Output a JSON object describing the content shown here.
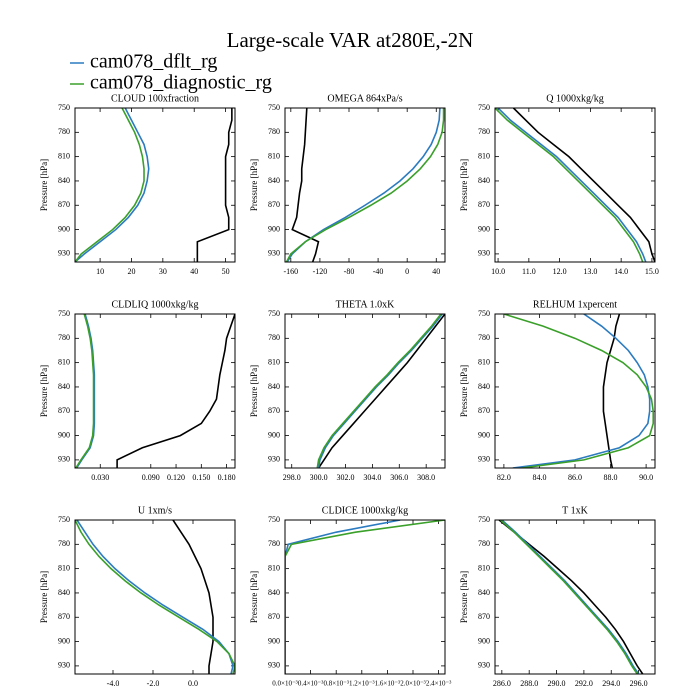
{
  "title": "Large-scale VAR at280E,-2N",
  "legend": [
    {
      "name": "cam078_dflt_rg",
      "color": "#2b7bc0"
    },
    {
      "name": "cam078_diagnostic_rg",
      "color": "#3aa02a"
    }
  ],
  "chart_data": [
    {
      "type": "profile",
      "title": "CLOUD  100xfraction",
      "ylabel": "Pressure [hPa]",
      "y": [
        750,
        765,
        780,
        795,
        810,
        825,
        840,
        855,
        870,
        885,
        900,
        915,
        930,
        940
      ],
      "ylim": [
        750,
        940
      ],
      "yticks": [
        750,
        780,
        810,
        840,
        870,
        900,
        930
      ],
      "xlim": [
        2,
        53
      ],
      "xticks": [
        10,
        20,
        30,
        40,
        50
      ],
      "series": [
        {
          "color": "#000000",
          "values": [
            52,
            52,
            51,
            51,
            50,
            50,
            50,
            50,
            50,
            51,
            51,
            41,
            41,
            41
          ]
        },
        {
          "color": "#2b7bc0",
          "values": [
            18,
            20,
            22,
            24,
            25,
            25.5,
            25,
            24,
            22,
            19,
            15,
            10,
            5,
            2
          ]
        },
        {
          "color": "#3aa02a",
          "values": [
            17,
            19,
            21,
            22.5,
            23.5,
            24,
            24,
            23,
            21,
            18,
            14,
            9,
            4,
            2
          ]
        }
      ]
    },
    {
      "type": "profile",
      "title": "OMEGA  864xPa/s",
      "ylabel": "Pressure [hPa]",
      "y": [
        750,
        765,
        780,
        795,
        810,
        825,
        840,
        855,
        870,
        885,
        900,
        915,
        930,
        940
      ],
      "ylim": [
        750,
        940
      ],
      "yticks": [
        750,
        780,
        810,
        840,
        870,
        900,
        930
      ],
      "xlim": [
        -168,
        52
      ],
      "xticks": [
        -160,
        -120,
        -80,
        -40,
        0,
        40
      ],
      "series": [
        {
          "color": "#000000",
          "values": [
            -138,
            -139,
            -140,
            -141,
            -143,
            -145,
            -145,
            -148,
            -150,
            -152,
            -158,
            -122,
            -126,
            -130
          ]
        },
        {
          "color": "#2b7bc0",
          "values": [
            45,
            44,
            40,
            33,
            22,
            8,
            -10,
            -32,
            -58,
            -85,
            -115,
            -140,
            -158,
            -165
          ]
        },
        {
          "color": "#3aa02a",
          "values": [
            50,
            50,
            48,
            42,
            32,
            18,
            0,
            -22,
            -50,
            -80,
            -112,
            -140,
            -160,
            -166
          ]
        }
      ]
    },
    {
      "type": "profile",
      "title": "Q  1000xkg/kg",
      "ylabel": "Pressure [hPa]",
      "y": [
        750,
        765,
        780,
        795,
        810,
        825,
        840,
        855,
        870,
        885,
        900,
        915,
        930,
        940
      ],
      "ylim": [
        750,
        940
      ],
      "yticks": [
        750,
        780,
        810,
        840,
        870,
        900,
        930
      ],
      "xlim": [
        9.9,
        15.1
      ],
      "xticks": [
        {
          "value": 10,
          "label": "10.0"
        },
        {
          "value": 11,
          "label": "11.0"
        },
        {
          "value": 12,
          "label": "12.0"
        },
        {
          "value": 13,
          "label": "13.0"
        },
        {
          "value": 14,
          "label": "14.0"
        },
        {
          "value": 15,
          "label": "15.0"
        }
      ],
      "series": [
        {
          "color": "#000000",
          "values": [
            10.5,
            10.9,
            11.3,
            11.8,
            12.3,
            12.7,
            13.1,
            13.5,
            13.9,
            14.3,
            14.6,
            14.9,
            15.0,
            15.1
          ]
        },
        {
          "color": "#2b7bc0",
          "values": [
            10.0,
            10.4,
            10.9,
            11.4,
            11.9,
            12.3,
            12.7,
            13.1,
            13.5,
            13.9,
            14.2,
            14.5,
            14.7,
            14.8
          ]
        },
        {
          "color": "#3aa02a",
          "values": [
            9.9,
            10.3,
            10.8,
            11.3,
            11.8,
            12.2,
            12.6,
            13.0,
            13.4,
            13.8,
            14.1,
            14.4,
            14.6,
            14.7
          ]
        }
      ]
    },
    {
      "type": "profile",
      "title": "CLDLIQ  1000xkg/kg",
      "ylabel": "Pressure [hPa]",
      "y": [
        750,
        765,
        780,
        795,
        810,
        825,
        840,
        855,
        870,
        885,
        900,
        915,
        930,
        940
      ],
      "ylim": [
        750,
        940
      ],
      "yticks": [
        750,
        780,
        810,
        840,
        870,
        900,
        930
      ],
      "xlim": [
        0,
        0.19
      ],
      "xticks": [
        {
          "value": 0.03,
          "label": "0.030"
        },
        {
          "value": 0.09,
          "label": "0.090"
        },
        {
          "value": 0.12,
          "label": "0.120"
        },
        {
          "value": 0.15,
          "label": "0.150"
        },
        {
          "value": 0.18,
          "label": "0.180"
        }
      ],
      "series": [
        {
          "color": "#000000",
          "values": [
            0.19,
            0.185,
            0.18,
            0.178,
            0.175,
            0.172,
            0.17,
            0.168,
            0.16,
            0.15,
            0.125,
            0.08,
            0.05,
            0.05
          ]
        },
        {
          "color": "#2b7bc0",
          "values": [
            0.012,
            0.016,
            0.019,
            0.021,
            0.022,
            0.023,
            0.023,
            0.023,
            0.023,
            0.023,
            0.022,
            0.018,
            0.008,
            0.002
          ]
        },
        {
          "color": "#3aa02a",
          "values": [
            0.011,
            0.015,
            0.018,
            0.02,
            0.021,
            0.022,
            0.022,
            0.022,
            0.022,
            0.022,
            0.021,
            0.017,
            0.007,
            0.001
          ]
        }
      ]
    },
    {
      "type": "profile",
      "title": "THETA  1.0xK",
      "ylabel": "Pressure [hPa]",
      "y": [
        750,
        765,
        780,
        795,
        810,
        825,
        840,
        855,
        870,
        885,
        900,
        915,
        930,
        940
      ],
      "ylim": [
        750,
        940
      ],
      "yticks": [
        750,
        780,
        810,
        840,
        870,
        900,
        930
      ],
      "xlim": [
        297.5,
        309.4
      ],
      "xticks": [
        {
          "value": 298,
          "label": "298.0"
        },
        {
          "value": 300,
          "label": "300.0"
        },
        {
          "value": 302,
          "label": "302.0"
        },
        {
          "value": 304,
          "label": "304.0"
        },
        {
          "value": 306,
          "label": "306.0"
        },
        {
          "value": 308,
          "label": "308.0"
        }
      ],
      "series": [
        {
          "color": "#000000",
          "values": [
            309.4,
            308.7,
            308.0,
            307.3,
            306.6,
            305.8,
            305.0,
            304.2,
            303.4,
            302.6,
            301.8,
            301.0,
            300.4,
            300.0
          ]
        },
        {
          "color": "#2b7bc0",
          "values": [
            309.2,
            308.5,
            307.7,
            306.9,
            306.0,
            305.2,
            304.3,
            303.5,
            302.7,
            301.9,
            301.1,
            300.5,
            300.1,
            300.0
          ]
        },
        {
          "color": "#3aa02a",
          "values": [
            309.1,
            308.4,
            307.6,
            306.8,
            305.9,
            305.1,
            304.2,
            303.4,
            302.6,
            301.8,
            301.0,
            300.4,
            300.0,
            299.9
          ]
        }
      ]
    },
    {
      "type": "profile",
      "title": "RELHUM  1xpercent",
      "ylabel": "Pressure [hPa]",
      "y": [
        750,
        765,
        780,
        795,
        810,
        825,
        840,
        855,
        870,
        885,
        900,
        915,
        930,
        940
      ],
      "ylim": [
        750,
        940
      ],
      "yticks": [
        750,
        780,
        810,
        840,
        870,
        900,
        930
      ],
      "xlim": [
        81.5,
        90.5
      ],
      "xticks": [
        {
          "value": 82,
          "label": "82.0"
        },
        {
          "value": 84,
          "label": "84.0"
        },
        {
          "value": 86,
          "label": "86.0"
        },
        {
          "value": 88,
          "label": "88.0"
        },
        {
          "value": 90,
          "label": "90.0"
        }
      ],
      "series": [
        {
          "color": "#000000",
          "values": [
            88.5,
            88.3,
            88.2,
            88.0,
            87.8,
            87.7,
            87.6,
            87.6,
            87.6,
            87.7,
            87.8,
            87.9,
            88.0,
            88.1
          ]
        },
        {
          "color": "#2b7bc0",
          "values": [
            86.5,
            87.5,
            88.3,
            89,
            89.5,
            89.9,
            90.1,
            90.2,
            90.2,
            90.1,
            89.6,
            88.5,
            86,
            82.5
          ]
        },
        {
          "color": "#3aa02a",
          "values": [
            82,
            84.2,
            86,
            87.5,
            88.7,
            89.5,
            90.0,
            90.3,
            90.4,
            90.4,
            90.2,
            89,
            86.5,
            83
          ]
        }
      ]
    },
    {
      "type": "profile",
      "title": "U  1xm/s",
      "ylabel": "Pressure [hPa]",
      "y": [
        750,
        765,
        780,
        795,
        810,
        825,
        840,
        855,
        870,
        885,
        900,
        915,
        930,
        940
      ],
      "ylim": [
        750,
        940
      ],
      "yticks": [
        750,
        780,
        810,
        840,
        870,
        900,
        930
      ],
      "xlim": [
        -5.9,
        2.1
      ],
      "xticks": [
        {
          "value": -4,
          "label": "-4.0"
        },
        {
          "value": -2,
          "label": "-2.0"
        },
        {
          "value": 0,
          "label": "0.0"
        }
      ],
      "series": [
        {
          "color": "#000000",
          "values": [
            -1.0,
            -0.6,
            -0.2,
            0.1,
            0.4,
            0.6,
            0.8,
            0.9,
            1.0,
            1.0,
            1.0,
            0.9,
            0.8,
            0.8
          ]
        },
        {
          "color": "#2b7bc0",
          "values": [
            -5.8,
            -5.4,
            -5.0,
            -4.5,
            -3.9,
            -3.2,
            -2.4,
            -1.5,
            -0.5,
            0.5,
            1.3,
            1.8,
            2.0,
            1.9
          ]
        },
        {
          "color": "#3aa02a",
          "values": [
            -5.9,
            -5.6,
            -5.2,
            -4.7,
            -4.1,
            -3.4,
            -2.6,
            -1.7,
            -0.7,
            0.3,
            1.2,
            1.8,
            2.1,
            2.0
          ]
        }
      ]
    },
    {
      "type": "profile",
      "title": "CLDICE  1000xkg/kg",
      "ylabel": "Pressure [hPa]",
      "y": [
        750,
        765,
        780,
        795,
        810,
        825,
        840,
        855,
        870,
        885,
        900,
        915,
        930,
        940
      ],
      "ylim": [
        750,
        940
      ],
      "yticks": [
        750,
        780,
        810,
        840,
        870,
        900,
        930
      ],
      "xlim": [
        0,
        0.0025
      ],
      "xticks": [
        {
          "value": 0,
          "label": "0.0×10⁻³"
        },
        {
          "value": 0.0004,
          "label": "0.4×10⁻³"
        },
        {
          "value": 0.0008,
          "label": "0.8×10⁻³"
        },
        {
          "value": 0.0012,
          "label": "1.2×10⁻³"
        },
        {
          "value": 0.0016,
          "label": "1.6×10⁻³"
        },
        {
          "value": 0.002,
          "label": "2.0×10⁻³"
        },
        {
          "value": 0.0024,
          "label": "2.4×10⁻³"
        }
      ],
      "series": [
        {
          "color": "#2b7bc0",
          "values": [
            0.0018,
            0.0008,
            5e-05,
            0,
            0,
            0,
            0,
            0,
            0,
            0,
            0,
            0,
            0,
            0
          ]
        },
        {
          "color": "#3aa02a",
          "values": [
            0.0025,
            0.0011,
            0.0001,
            0,
            0,
            0,
            0,
            0,
            0,
            0,
            0,
            0,
            0,
            0
          ]
        }
      ]
    },
    {
      "type": "profile",
      "title": "T  1xK",
      "ylabel": "Pressure [hPa]",
      "y": [
        750,
        765,
        780,
        795,
        810,
        825,
        840,
        855,
        870,
        885,
        900,
        915,
        930,
        940
      ],
      "ylim": [
        750,
        940
      ],
      "yticks": [
        750,
        780,
        810,
        840,
        870,
        900,
        930
      ],
      "xlim": [
        285.5,
        297.2
      ],
      "xticks": [
        {
          "value": 286,
          "label": "286.0"
        },
        {
          "value": 288,
          "label": "288.0"
        },
        {
          "value": 290,
          "label": "290.0"
        },
        {
          "value": 292,
          "label": "292.0"
        },
        {
          "value": 294,
          "label": "294.0"
        },
        {
          "value": 296,
          "label": "296.0"
        }
      ],
      "series": [
        {
          "color": "#000000",
          "values": [
            285.8,
            286.9,
            288.0,
            289.1,
            290.1,
            291.1,
            292.0,
            292.8,
            293.6,
            294.3,
            294.9,
            295.4,
            295.9,
            296.3
          ]
        },
        {
          "color": "#2b7bc0",
          "values": [
            286.0,
            287.0,
            287.9,
            288.8,
            289.7,
            290.6,
            291.4,
            292.2,
            293.0,
            293.8,
            294.5,
            295.1,
            295.6,
            296.0
          ]
        },
        {
          "color": "#3aa02a",
          "values": [
            285.9,
            286.9,
            287.8,
            288.7,
            289.6,
            290.5,
            291.3,
            292.1,
            292.9,
            293.7,
            294.4,
            295.0,
            295.5,
            295.9
          ]
        }
      ]
    }
  ]
}
